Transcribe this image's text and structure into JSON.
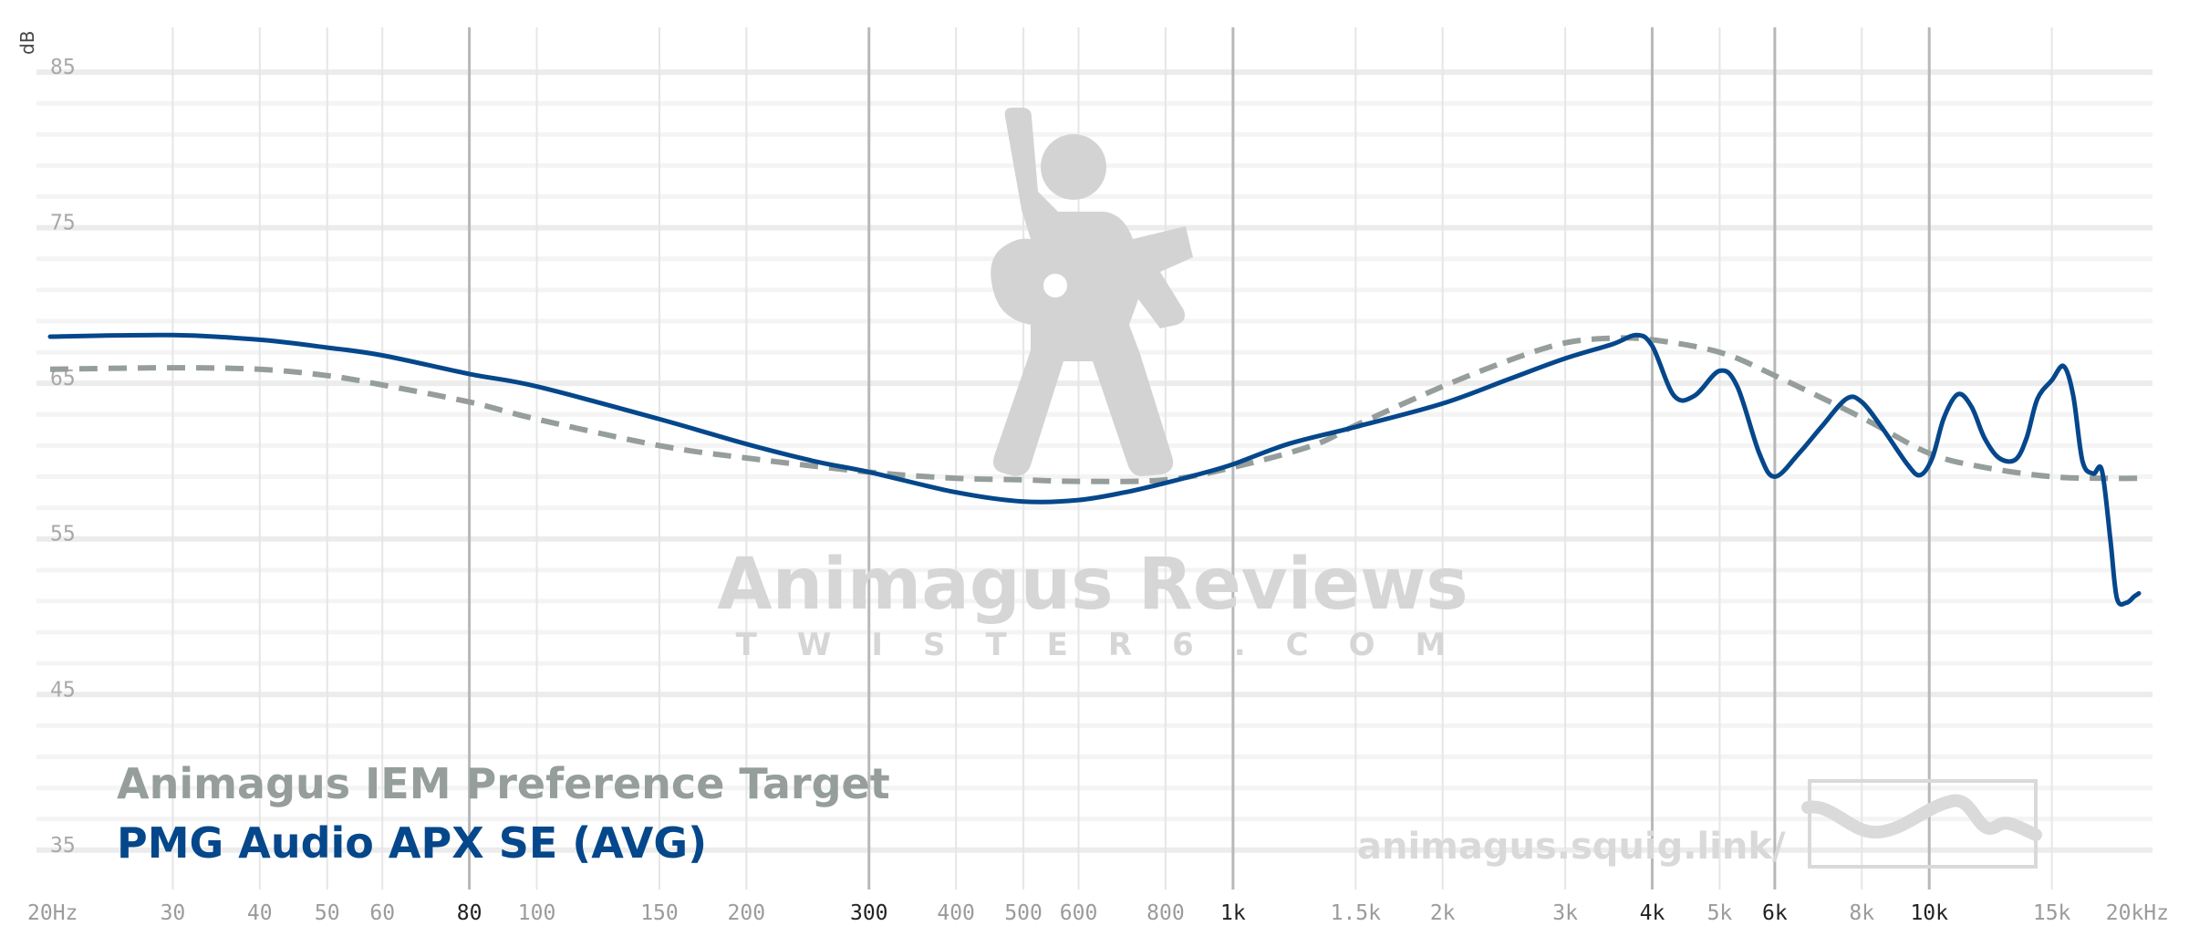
{
  "chart_data": {
    "type": "line",
    "xscale": "log",
    "xlim": [
      20,
      20000
    ],
    "ylim": [
      31,
      87
    ],
    "ylabel": "dB",
    "grid": true,
    "legend_position": "bottom-left",
    "y_ticks": [
      "85",
      "75",
      "65",
      "55",
      "45",
      "35"
    ],
    "x_ticks": [
      {
        "f": 20,
        "label": "20Hz",
        "major": false
      },
      {
        "f": 30,
        "label": "30",
        "major": false
      },
      {
        "f": 40,
        "label": "40",
        "major": false
      },
      {
        "f": 50,
        "label": "50",
        "major": false
      },
      {
        "f": 60,
        "label": "60",
        "major": false
      },
      {
        "f": 80,
        "label": "80",
        "major": true
      },
      {
        "f": 100,
        "label": "100",
        "major": false
      },
      {
        "f": 150,
        "label": "150",
        "major": false
      },
      {
        "f": 200,
        "label": "200",
        "major": false
      },
      {
        "f": 300,
        "label": "300",
        "major": true
      },
      {
        "f": 400,
        "label": "400",
        "major": false
      },
      {
        "f": 500,
        "label": "500",
        "major": false
      },
      {
        "f": 600,
        "label": "600",
        "major": false
      },
      {
        "f": 800,
        "label": "800",
        "major": false
      },
      {
        "f": 1000,
        "label": "1k",
        "major": true
      },
      {
        "f": 1500,
        "label": "1.5k",
        "major": false
      },
      {
        "f": 2000,
        "label": "2k",
        "major": false
      },
      {
        "f": 3000,
        "label": "3k",
        "major": false
      },
      {
        "f": 4000,
        "label": "4k",
        "major": true
      },
      {
        "f": 5000,
        "label": "5k",
        "major": false
      },
      {
        "f": 6000,
        "label": "6k",
        "major": true
      },
      {
        "f": 8000,
        "label": "8k",
        "major": false
      },
      {
        "f": 10000,
        "label": "10k",
        "major": true
      },
      {
        "f": 15000,
        "label": "15k",
        "major": false
      },
      {
        "f": 20000,
        "label": "20kHz",
        "major": false
      }
    ],
    "series": [
      {
        "name": "Animagus IEM Preference Target",
        "color": "#959e9b",
        "dashed": true,
        "points": [
          [
            20,
            65.9
          ],
          [
            30,
            66
          ],
          [
            40,
            65.9
          ],
          [
            50,
            65.5
          ],
          [
            60,
            64.9
          ],
          [
            80,
            63.8
          ],
          [
            100,
            62.7
          ],
          [
            150,
            61
          ],
          [
            200,
            60.2
          ],
          [
            300,
            59.3
          ],
          [
            400,
            58.9
          ],
          [
            500,
            58.8
          ],
          [
            600,
            58.7
          ],
          [
            800,
            58.8
          ],
          [
            1000,
            59.6
          ],
          [
            1300,
            61
          ],
          [
            1500,
            62.3
          ],
          [
            2000,
            64.8
          ],
          [
            2500,
            66.5
          ],
          [
            3000,
            67.6
          ],
          [
            3500,
            67.9
          ],
          [
            4000,
            67.8
          ],
          [
            5000,
            67
          ],
          [
            6000,
            65.5
          ],
          [
            8000,
            62.8
          ],
          [
            10000,
            60.5
          ],
          [
            12000,
            59.6
          ],
          [
            15000,
            59
          ],
          [
            18000,
            58.9
          ],
          [
            20000,
            58.9
          ]
        ]
      },
      {
        "name": "PMG Audio APX SE (AVG)",
        "color": "#05478b",
        "dashed": false,
        "points": [
          [
            20,
            68
          ],
          [
            30,
            68.1
          ],
          [
            40,
            67.8
          ],
          [
            50,
            67.3
          ],
          [
            60,
            66.8
          ],
          [
            80,
            65.6
          ],
          [
            100,
            64.8
          ],
          [
            150,
            62.7
          ],
          [
            200,
            61.1
          ],
          [
            250,
            60
          ],
          [
            300,
            59.3
          ],
          [
            400,
            58
          ],
          [
            500,
            57.4
          ],
          [
            600,
            57.5
          ],
          [
            700,
            58
          ],
          [
            800,
            58.6
          ],
          [
            900,
            59.2
          ],
          [
            1000,
            59.8
          ],
          [
            1200,
            61.1
          ],
          [
            1500,
            62.2
          ],
          [
            2000,
            63.7
          ],
          [
            2500,
            65.3
          ],
          [
            3000,
            66.6
          ],
          [
            3500,
            67.5
          ],
          [
            3800,
            68.1
          ],
          [
            4000,
            67.4
          ],
          [
            4300,
            64.2
          ],
          [
            4600,
            64.2
          ],
          [
            5000,
            65.8
          ],
          [
            5300,
            64.8
          ],
          [
            5700,
            60.5
          ],
          [
            6000,
            59
          ],
          [
            6500,
            60.5
          ],
          [
            7000,
            62.2
          ],
          [
            7600,
            64
          ],
          [
            8000,
            63.8
          ],
          [
            8600,
            62
          ],
          [
            9300,
            59.8
          ],
          [
            9700,
            59.1
          ],
          [
            10100,
            60.2
          ],
          [
            10500,
            62.8
          ],
          [
            11000,
            64.3
          ],
          [
            11500,
            63.5
          ],
          [
            12000,
            61.5
          ],
          [
            12600,
            60.2
          ],
          [
            13300,
            60.1
          ],
          [
            13800,
            61.5
          ],
          [
            14300,
            64
          ],
          [
            15000,
            65.2
          ],
          [
            15600,
            66.1
          ],
          [
            16100,
            64.2
          ],
          [
            16600,
            60
          ],
          [
            17200,
            59.2
          ],
          [
            17700,
            59.4
          ],
          [
            18200,
            55
          ],
          [
            18600,
            51.2
          ],
          [
            19200,
            50.9
          ],
          [
            19700,
            51.3
          ],
          [
            20000,
            51.5
          ]
        ]
      }
    ]
  },
  "watermark": {
    "title": "Animagus Reviews",
    "subtitle": "TWISTER6.COM",
    "url": "animagus.squig.link/"
  }
}
